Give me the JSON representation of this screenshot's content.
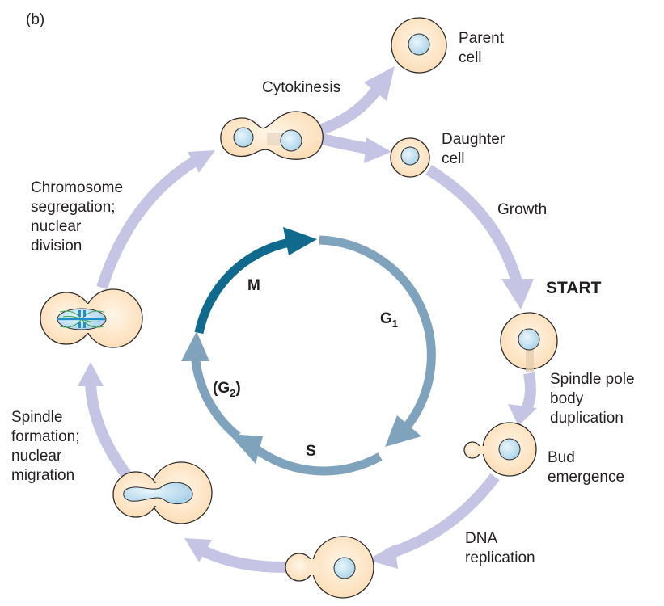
{
  "panel_label": "(b)",
  "phases": {
    "m": "M",
    "g1": "G",
    "g1_sub": "1",
    "s": "S",
    "g2_open": "(G",
    "g2_sub": "2",
    "g2_close": ")"
  },
  "labels": {
    "parent_cell": [
      "Parent",
      "cell"
    ],
    "cytokinesis": "Cytokinesis",
    "daughter_cell": [
      "Daughter",
      "cell"
    ],
    "growth": "Growth",
    "start": "START",
    "spindle_pole": [
      "Spindle pole",
      "body",
      "duplication"
    ],
    "bud_emergence": [
      "Bud",
      "emergence"
    ],
    "dna_replication": [
      "DNA",
      "replication"
    ],
    "spindle_formation": [
      "Spindle",
      "formation;",
      "nuclear",
      "migration"
    ],
    "chromosome_segregation": [
      "Chromosome",
      "segregation;",
      "nuclear",
      "division"
    ]
  },
  "colors": {
    "outer_arrow": "#c6c4e4",
    "inner_arrow": "#7fa3bd",
    "inner_arrow_m": "#0f6a8e",
    "cell_fill": "#fde8cc",
    "cell_stroke": "#2b2b2b",
    "nucleus_fill": "#cfe6f2",
    "spindle": "#1d8fc9",
    "chromosomes": "#3aa860"
  }
}
